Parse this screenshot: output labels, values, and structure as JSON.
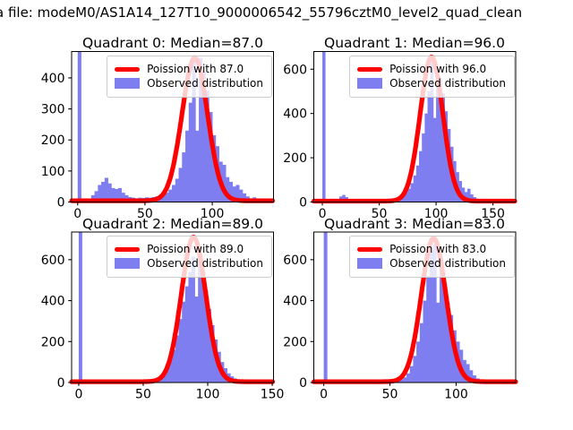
{
  "figure_title": {
    "visible_text": "a file: modeM0/AS1A14_127T10_9000006542_55796cztM0_level2_quad_clean"
  },
  "colors": {
    "background": "#ffffff",
    "hist_fill": "#7e7ef1",
    "curve": "#ff0000",
    "axes_frame": "#000000",
    "legend_border": "#cccccc",
    "legend_bg": "rgba(255,255,255,0.8)",
    "text": "#000000"
  },
  "chart_data": [
    {
      "type": "bar",
      "title": "Quadrant 0: Median=87.0",
      "legend": {
        "position": "upper right",
        "line_label": "Poission with 87.0",
        "patch_label": "Observed distribution"
      },
      "xlim": [
        -4.5,
        145.5
      ],
      "ylim": [
        0,
        485
      ],
      "xticks": [
        0,
        50,
        100
      ],
      "yticks": [
        0,
        100,
        200,
        300,
        400
      ],
      "grid": false,
      "bins": {
        "start": 0,
        "width": 2.5,
        "heights": [
          2000,
          5,
          8,
          10,
          22,
          35,
          55,
          65,
          78,
          60,
          45,
          42,
          45,
          30,
          22,
          16,
          14,
          12,
          14,
          13,
          15,
          14,
          16,
          18,
          22,
          25,
          30,
          40,
          55,
          75,
          110,
          160,
          230,
          320,
          460,
          230,
          465,
          420,
          360,
          290,
          215,
          180,
          130,
          120,
          80,
          65,
          50,
          55,
          40,
          28,
          18,
          12,
          15,
          10,
          6,
          4,
          3
        ]
      },
      "poisson_fit": {
        "lambda": 87.0,
        "mean": 87,
        "sigma": 9.5,
        "peak": 465,
        "base": 4
      }
    },
    {
      "type": "bar",
      "title": "Quadrant 1: Median=96.0",
      "legend": {
        "position": "upper right",
        "line_label": "Poission with 96.0",
        "patch_label": "Observed distribution"
      },
      "xlim": [
        -7.5,
        170
      ],
      "ylim": [
        0,
        680
      ],
      "xticks": [
        0,
        50,
        100,
        150
      ],
      "yticks": [
        0,
        200,
        400,
        600
      ],
      "grid": false,
      "bins": {
        "start": 0,
        "width": 2.5,
        "heights": [
          2000,
          4,
          4,
          4,
          5,
          6,
          25,
          32,
          22,
          8,
          6,
          5,
          5,
          5,
          5,
          5,
          5,
          5,
          5,
          5,
          6,
          8,
          10,
          8,
          10,
          12,
          16,
          22,
          30,
          45,
          60,
          85,
          120,
          165,
          230,
          310,
          400,
          500,
          640,
          380,
          610,
          560,
          490,
          410,
          330,
          250,
          185,
          135,
          95,
          65,
          45,
          60,
          35,
          22,
          15,
          10,
          8,
          6,
          4,
          3,
          3,
          2,
          2,
          2,
          1,
          1
        ]
      },
      "poisson_fit": {
        "lambda": 96.0,
        "mean": 96,
        "sigma": 10,
        "peak": 655,
        "base": 4
      }
    },
    {
      "type": "bar",
      "title": "Quadrant 2: Median=89.0",
      "legend": {
        "position": "upper right",
        "line_label": "Poission with 89.0",
        "patch_label": "Observed distribution"
      },
      "xlim": [
        -5.5,
        151
      ],
      "ylim": [
        0,
        735
      ],
      "xticks": [
        0,
        50,
        100,
        150
      ],
      "yticks": [
        0,
        200,
        400,
        600
      ],
      "grid": false,
      "bins": {
        "start": 0,
        "width": 2.5,
        "heights": [
          2000,
          3,
          3,
          3,
          4,
          4,
          5,
          4,
          4,
          4,
          4,
          4,
          4,
          4,
          4,
          4,
          4,
          5,
          5,
          5,
          5,
          5,
          8,
          12,
          20,
          30,
          50,
          75,
          110,
          160,
          230,
          310,
          395,
          470,
          540,
          615,
          420,
          590,
          530,
          450,
          360,
          280,
          210,
          150,
          100,
          70,
          45,
          30,
          20,
          14,
          10,
          15,
          6,
          5,
          4,
          3,
          2,
          2
        ]
      },
      "poisson_fit": {
        "lambda": 89.0,
        "mean": 89,
        "sigma": 9.5,
        "peak": 710,
        "base": 4
      }
    },
    {
      "type": "bar",
      "title": "Quadrant 3: Median=83.0",
      "legend": {
        "position": "upper right",
        "line_label": "Poission with 83.0",
        "patch_label": "Observed distribution"
      },
      "xlim": [
        -7.5,
        145
      ],
      "ylim": [
        0,
        735
      ],
      "xticks": [
        0,
        50,
        100
      ],
      "yticks": [
        0,
        200,
        400,
        600
      ],
      "grid": false,
      "bins": {
        "start": 0,
        "width": 2.5,
        "heights": [
          2000,
          3,
          3,
          3,
          3,
          3,
          10,
          12,
          4,
          3,
          3,
          3,
          3,
          3,
          3,
          3,
          3,
          3,
          3,
          3,
          8,
          6,
          10,
          15,
          25,
          45,
          80,
          130,
          200,
          290,
          400,
          520,
          640,
          675,
          390,
          560,
          470,
          390,
          330,
          255,
          200,
          160,
          110,
          90,
          60,
          35,
          20,
          12,
          8,
          5,
          4,
          3,
          3,
          2,
          2,
          2
        ]
      },
      "poisson_fit": {
        "lambda": 83.0,
        "mean": 83,
        "sigma": 9.3,
        "peak": 705,
        "base": 4
      }
    }
  ]
}
